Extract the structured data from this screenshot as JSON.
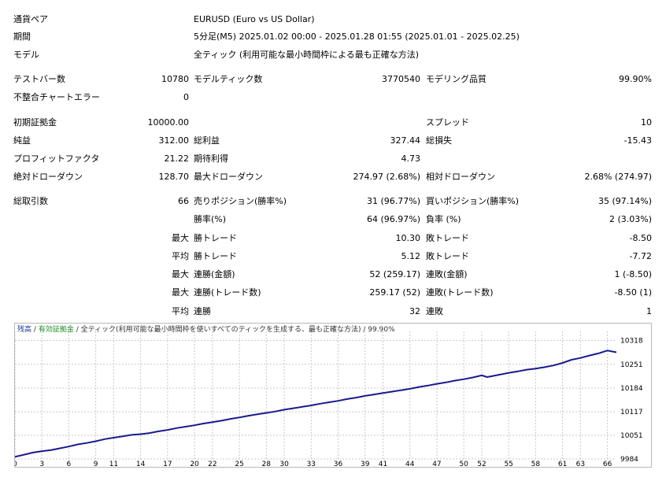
{
  "header": {
    "symbol_label": "通貨ペア",
    "symbol_value": "EURUSD (Euro vs US Dollar)",
    "period_label": "期間",
    "period_value": "5分足(M5) 2025.01.02 00:00 - 2025.01.28 01:55 (2025.01.01 - 2025.02.25)",
    "model_label": "モデル",
    "model_value": "全ティック (利用可能な最小時間枠による最も正確な方法)"
  },
  "stats": {
    "bars_label": "テストバー数",
    "bars_value": "10780",
    "ticks_label": "モデルティック数",
    "ticks_value": "3770540",
    "quality_label": "モデリング品質",
    "quality_value": "99.90%",
    "mismatch_label": "不整合チャートエラー",
    "mismatch_value": "0",
    "deposit_label": "初期証拠金",
    "deposit_value": "10000.00",
    "spread_label": "スプレッド",
    "spread_value": "10",
    "net_label": "純益",
    "net_value": "312.00",
    "gross_profit_label": "総利益",
    "gross_profit_value": "327.44",
    "gross_loss_label": "総損失",
    "gross_loss_value": "-15.43",
    "pf_label": "プロフィットファクタ",
    "pf_value": "21.22",
    "expected_label": "期待利得",
    "expected_value": "4.73",
    "abs_dd_label": "絶対ドローダウン",
    "abs_dd_value": "128.70",
    "max_dd_label": "最大ドローダウン",
    "max_dd_value": "274.97 (2.68%)",
    "rel_dd_label": "相対ドローダウン",
    "rel_dd_value": "2.68% (274.97)",
    "trades_label": "総取引数",
    "trades_value": "66",
    "short_label": "売りポジション(勝率%)",
    "short_value": "31 (96.77%)",
    "long_label": "買いポジション(勝率%)",
    "long_value": "35 (97.14%)",
    "win_pct_label": "勝率(%)",
    "win_pct_value": "64 (96.97%)",
    "loss_pct_label": "負率 (%)",
    "loss_pct_value": "2 (3.03%)",
    "max_prefix": "最大",
    "avg_prefix": "平均",
    "win_trade_label": "勝トレード",
    "loss_trade_label": "敗トレード",
    "max_win_value": "10.30",
    "max_loss_value": "-8.50",
    "avg_win_value": "5.12",
    "avg_loss_value": "-7.72",
    "cons_win_money_label": "連勝(金額)",
    "cons_win_money_value": "52 (259.17)",
    "cons_loss_money_label": "連敗(金額)",
    "cons_loss_money_value": "1 (-8.50)",
    "cons_win_count_label": "連勝(トレード数)",
    "cons_win_count_value": "259.17 (52)",
    "cons_loss_count_label": "連敗(トレード数)",
    "cons_loss_count_value": "-8.50 (1)",
    "avg_cons_win_label": "連勝",
    "avg_cons_win_value": "32",
    "avg_cons_loss_label": "連敗",
    "avg_cons_loss_value": "1"
  },
  "chart_legend": {
    "balance": "残高",
    "sep": "/",
    "equity": "有効証拠金",
    "rest": "/ 全ティック(利用可能な最小時間枠を使いすべてのティックを生成する、最も正確な方法) / 99.90%"
  },
  "colors": {
    "line": "#1a1a8c",
    "grid": "#c8c8c8",
    "balance": "#1a3b9e",
    "equity": "#1e8a1e"
  },
  "chart_data": {
    "type": "line",
    "x_ticks": [
      0,
      3,
      6,
      9,
      11,
      14,
      17,
      20,
      22,
      25,
      28,
      30,
      33,
      36,
      39,
      41,
      44,
      47,
      50,
      52,
      55,
      58,
      61,
      63,
      66
    ],
    "y_ticks": [
      9984,
      10051,
      10117,
      10184,
      10251,
      10318
    ],
    "ylim": [
      9984,
      10335
    ],
    "xlim": [
      0,
      67
    ],
    "grid": true,
    "series": [
      {
        "x": [
          0,
          1,
          2,
          3,
          4,
          5,
          6,
          7,
          8,
          9,
          10,
          11,
          12,
          13,
          14,
          15,
          16,
          17,
          18,
          19,
          20,
          21,
          22,
          23,
          24,
          25,
          26,
          27,
          28,
          29,
          30,
          31,
          32,
          33,
          34,
          35,
          36,
          37,
          38,
          39,
          40,
          41,
          42,
          43,
          44,
          45,
          46,
          47,
          48,
          49,
          50,
          51,
          52,
          52.6,
          53,
          54,
          55,
          56,
          57,
          58,
          59,
          60,
          61,
          62,
          63,
          64,
          65,
          66,
          67
        ],
        "values": [
          9990,
          9996,
          10002,
          10006,
          10009,
          10014,
          10019,
          10025,
          10029,
          10034,
          10040,
          10044,
          10048,
          10052,
          10054,
          10057,
          10062,
          10066,
          10071,
          10075,
          10079,
          10084,
          10088,
          10092,
          10097,
          10101,
          10106,
          10110,
          10114,
          10118,
          10123,
          10127,
          10131,
          10135,
          10140,
          10144,
          10148,
          10153,
          10157,
          10162,
          10166,
          10170,
          10174,
          10178,
          10182,
          10187,
          10191,
          10196,
          10200,
          10205,
          10209,
          10214,
          10220,
          10215,
          10217,
          10222,
          10227,
          10231,
          10236,
          10239,
          10243,
          10248,
          10255,
          10264,
          10269,
          10276,
          10282,
          10290,
          10285
        ]
      }
    ]
  }
}
